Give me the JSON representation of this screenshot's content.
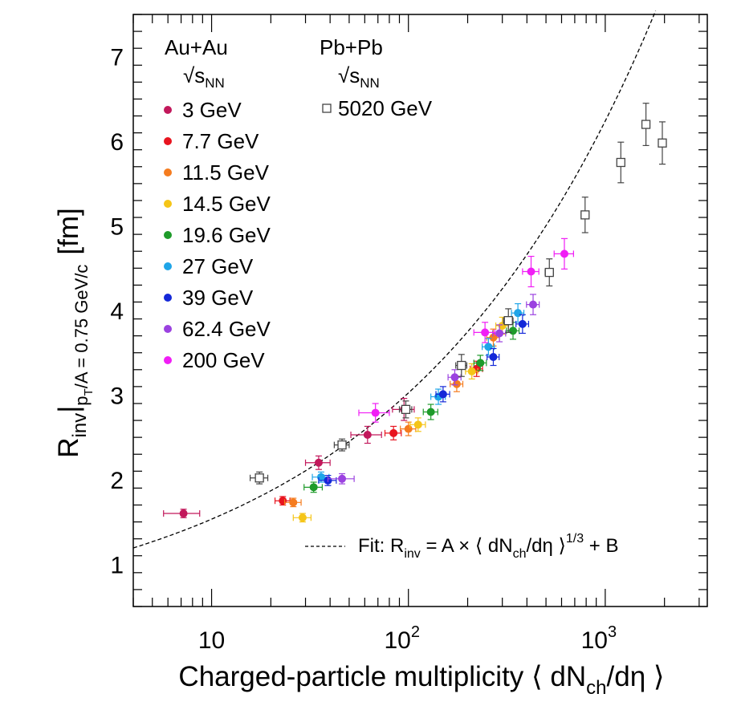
{
  "chart_data": {
    "type": "scatter",
    "x_scale": "log",
    "xlim": [
      4,
      3300
    ],
    "ylim": [
      0.5,
      7.5
    ],
    "xlabel": {
      "main": "Charged-particle multiplicity ⟨ dN",
      "sub": "ch",
      "tail": "/dη ⟩"
    },
    "ylabel": {
      "main": "R",
      "sub_inv": "inv",
      "bar": "|",
      "sub_pt": "p",
      "sub_pt_sub": "T",
      "sub_rest": "/A = 0.75 GeV/c",
      "unit": "[fm]"
    },
    "x_ticks": [
      {
        "value": 10,
        "label": "10",
        "sup": ""
      },
      {
        "value": 100,
        "label": "10",
        "sup": "2"
      },
      {
        "value": 1000,
        "label": "10",
        "sup": "3"
      }
    ],
    "y_ticks": [
      1,
      2,
      3,
      4,
      5,
      6,
      7
    ],
    "legend": {
      "auau_title": "Au+Au",
      "auau_energy": "√s",
      "auau_energy_sub": "NN",
      "pbpb_title": "Pb+Pb",
      "pbpb_energy": "√s",
      "pbpb_energy_sub": "NN",
      "pbpb_entry": "5020 GeV"
    },
    "fit": {
      "A": 0.6,
      "B": 0.24,
      "label_main": "Fit: R",
      "label_sub": "inv",
      "label_mid": " = A × ⟨ dN",
      "label_sub2": "ch",
      "label_mid2": "/dη ⟩",
      "label_sup": "1/3",
      "label_end": " + B"
    },
    "series": [
      {
        "name": "3 GeV",
        "color": "#c2185b",
        "marker": "circle",
        "points": [
          {
            "x": 7.2,
            "y": 1.6,
            "xerr": 1.5,
            "yerr": 0.05
          },
          {
            "x": 35.0,
            "y": 2.2,
            "xerr": 5.0,
            "yerr": 0.08
          },
          {
            "x": 62.0,
            "y": 2.53,
            "xerr": 11.0,
            "yerr": 0.1
          },
          {
            "x": 95.0,
            "y": 2.83,
            "xerr": 12.0,
            "yerr": 0.13
          }
        ]
      },
      {
        "name": "7.7 GeV",
        "color": "#e8141f",
        "marker": "circle",
        "points": [
          {
            "x": 23.0,
            "y": 1.75,
            "xerr": 2.0,
            "yerr": 0.05
          },
          {
            "x": 84.0,
            "y": 2.55,
            "xerr": 8.0,
            "yerr": 0.08
          },
          {
            "x": 222.0,
            "y": 3.31,
            "xerr": 16.0,
            "yerr": 0.09
          }
        ]
      },
      {
        "name": "11.5 GeV",
        "color": "#f57c1f",
        "marker": "circle",
        "points": [
          {
            "x": 26.0,
            "y": 1.73,
            "xerr": 2.5,
            "yerr": 0.05
          },
          {
            "x": 100.0,
            "y": 2.6,
            "xerr": 9.0,
            "yerr": 0.08
          },
          {
            "x": 176.0,
            "y": 3.13,
            "xerr": 13.0,
            "yerr": 0.09
          },
          {
            "x": 270.0,
            "y": 3.68,
            "xerr": 20.0,
            "yerr": 0.1
          }
        ]
      },
      {
        "name": "14.5 GeV",
        "color": "#f5c518",
        "marker": "circle",
        "points": [
          {
            "x": 29.0,
            "y": 1.55,
            "xerr": 3.0,
            "yerr": 0.05
          },
          {
            "x": 112.0,
            "y": 2.65,
            "xerr": 10.0,
            "yerr": 0.08
          },
          {
            "x": 210.0,
            "y": 3.28,
            "xerr": 15.0,
            "yerr": 0.09
          },
          {
            "x": 300.0,
            "y": 3.82,
            "xerr": 22.0,
            "yerr": 0.1
          }
        ]
      },
      {
        "name": "19.6 GeV",
        "color": "#1e9b2a",
        "marker": "circle",
        "points": [
          {
            "x": 33.0,
            "y": 1.91,
            "xerr": 3.5,
            "yerr": 0.06
          },
          {
            "x": 130.0,
            "y": 2.8,
            "xerr": 11.0,
            "yerr": 0.09
          },
          {
            "x": 232.0,
            "y": 3.38,
            "xerr": 17.0,
            "yerr": 0.09
          },
          {
            "x": 340.0,
            "y": 3.76,
            "xerr": 25.0,
            "yerr": 0.1
          }
        ]
      },
      {
        "name": "27 GeV",
        "color": "#1fa5e8",
        "marker": "circle",
        "points": [
          {
            "x": 36.0,
            "y": 2.03,
            "xerr": 3.5,
            "yerr": 0.06
          },
          {
            "x": 142.0,
            "y": 2.98,
            "xerr": 12.0,
            "yerr": 0.09
          },
          {
            "x": 255.0,
            "y": 3.57,
            "xerr": 18.0,
            "yerr": 0.1
          },
          {
            "x": 360.0,
            "y": 3.97,
            "xerr": 26.0,
            "yerr": 0.11
          }
        ]
      },
      {
        "name": "39 GeV",
        "color": "#1428d8",
        "marker": "circle",
        "points": [
          {
            "x": 39.0,
            "y": 1.99,
            "xerr": 4.0,
            "yerr": 0.06
          },
          {
            "x": 150.0,
            "y": 3.01,
            "xerr": 12.0,
            "yerr": 0.09
          },
          {
            "x": 270.0,
            "y": 3.45,
            "xerr": 19.0,
            "yerr": 0.1
          },
          {
            "x": 380.0,
            "y": 3.84,
            "xerr": 28.0,
            "yerr": 0.11
          }
        ]
      },
      {
        "name": "62.4 GeV",
        "color": "#9b42e0",
        "marker": "circle",
        "points": [
          {
            "x": 46.0,
            "y": 2.01,
            "xerr": 7.0,
            "yerr": 0.06
          },
          {
            "x": 172.0,
            "y": 3.21,
            "xerr": 13.0,
            "yerr": 0.09
          },
          {
            "x": 290.0,
            "y": 3.73,
            "xerr": 22.0,
            "yerr": 0.1
          },
          {
            "x": 430.0,
            "y": 4.07,
            "xerr": 32.0,
            "yerr": 0.12
          }
        ]
      },
      {
        "name": "200 GeV",
        "color": "#f01ef5",
        "marker": "circle",
        "points": [
          {
            "x": 68.0,
            "y": 2.79,
            "xerr": 12.0,
            "yerr": 0.11
          },
          {
            "x": 245.0,
            "y": 3.74,
            "xerr": 30.0,
            "yerr": 0.12
          },
          {
            "x": 420.0,
            "y": 4.46,
            "xerr": 40.0,
            "yerr": 0.18
          },
          {
            "x": 620.0,
            "y": 4.67,
            "xerr": 70.0,
            "yerr": 0.18
          }
        ]
      },
      {
        "name": "5020 GeV",
        "color": "#444444",
        "marker": "open-square",
        "points": [
          {
            "x": 17.5,
            "y": 2.02,
            "xerr": 1.8,
            "yerr": 0.07
          },
          {
            "x": 46.0,
            "y": 2.41,
            "xerr": 4.0,
            "yerr": 0.07
          },
          {
            "x": 97.0,
            "y": 2.83,
            "xerr": 7.0,
            "yerr": 0.1
          },
          {
            "x": 186.0,
            "y": 3.35,
            "xerr": 12.0,
            "yerr": 0.13
          },
          {
            "x": 322.0,
            "y": 3.88,
            "xerr": 18.0,
            "yerr": 0.14
          },
          {
            "x": 520.0,
            "y": 4.45,
            "xerr": 25.0,
            "yerr": 0.16
          },
          {
            "x": 790.0,
            "y": 5.13,
            "xerr": 35.0,
            "yerr": 0.21
          },
          {
            "x": 1200.0,
            "y": 5.75,
            "xerr": 50.0,
            "yerr": 0.24
          },
          {
            "x": 1610.0,
            "y": 6.2,
            "xerr": 65.0,
            "yerr": 0.25
          },
          {
            "x": 1950.0,
            "y": 5.98,
            "xerr": 80.0,
            "yerr": 0.25
          }
        ]
      }
    ]
  }
}
